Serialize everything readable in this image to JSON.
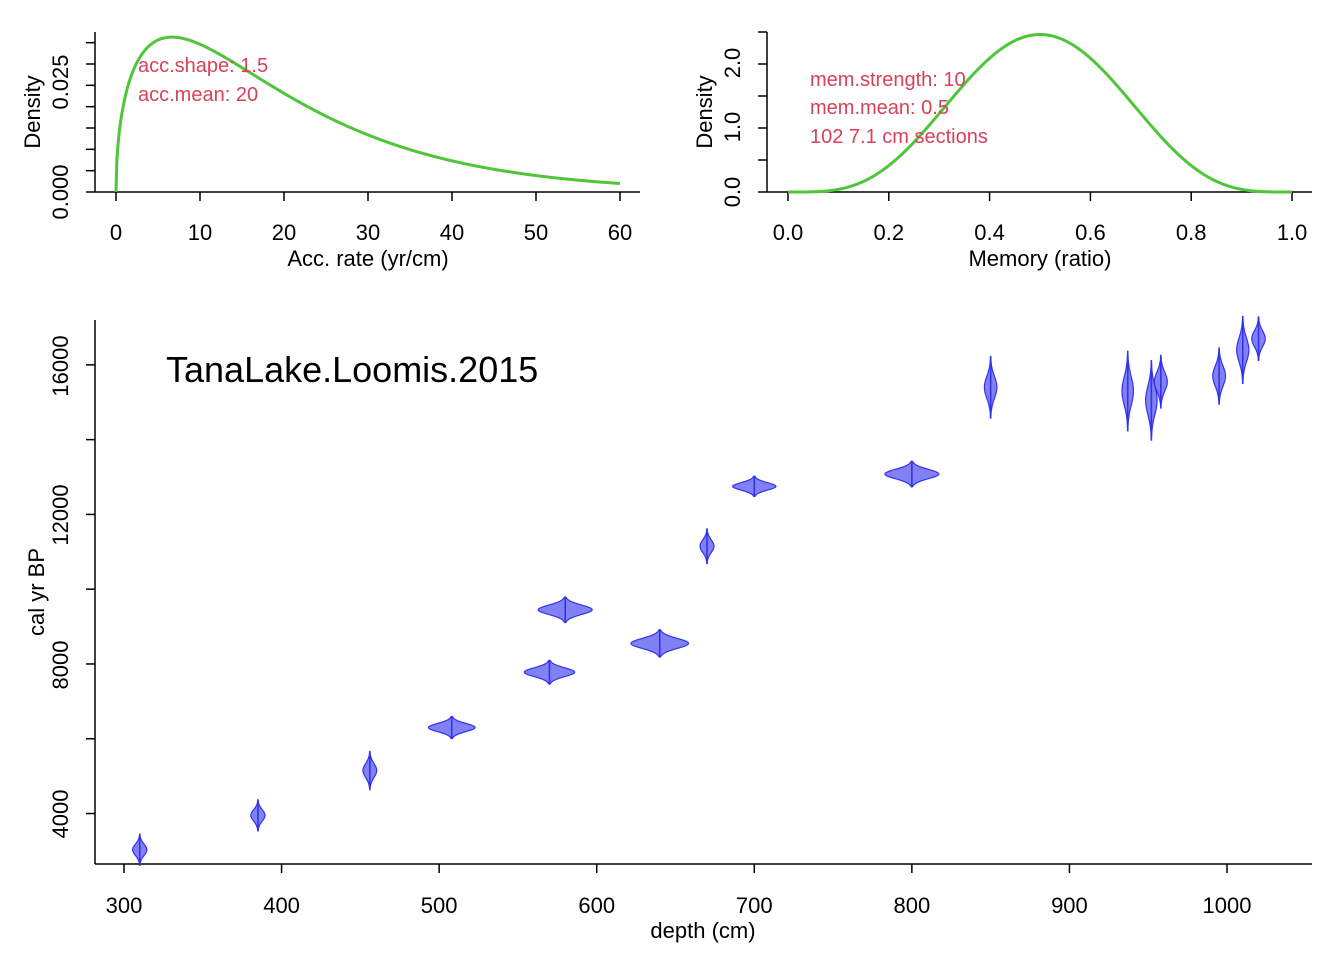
{
  "acc_panel": {
    "xlabel": "Acc. rate (yr/cm)",
    "ylabel": "Density",
    "xticks": [
      "0",
      "10",
      "20",
      "30",
      "40",
      "50",
      "60"
    ],
    "yticks": [
      "0.000",
      "0.025"
    ],
    "annotations": [
      "acc.shape:  1.5",
      "acc.mean:  20"
    ]
  },
  "mem_panel": {
    "xlabel": "Memory (ratio)",
    "ylabel": "Density",
    "xticks": [
      "0.0",
      "0.2",
      "0.4",
      "0.6",
      "0.8",
      "1.0"
    ],
    "yticks": [
      "0.0",
      "1.0",
      "2.0"
    ],
    "annotations": [
      "mem.strength: 10",
      "mem.mean: 0.5",
      "102 7.1 cm sections"
    ]
  },
  "age_panel": {
    "title": "TanaLake.Loomis.2015",
    "xlabel": "depth (cm)",
    "ylabel": "cal yr  BP",
    "xticks": [
      "300",
      "400",
      "500",
      "600",
      "700",
      "800",
      "900",
      "1000"
    ],
    "yticks": [
      "4000",
      "8000",
      "12000",
      "16000"
    ]
  },
  "chart_data": [
    {
      "type": "line",
      "title": "",
      "xlabel": "Acc. rate (yr/cm)",
      "ylabel": "Density",
      "xlim": [
        0,
        60
      ],
      "ylim": [
        0,
        0.0375
      ],
      "distribution": "gamma",
      "params": {
        "shape": 1.5,
        "mean": 20
      },
      "series": [
        {
          "color": "#4fc53a"
        }
      ]
    },
    {
      "type": "line",
      "title": "",
      "xlabel": "Memory (ratio)",
      "ylabel": "Density",
      "xlim": [
        0,
        1
      ],
      "ylim": [
        0,
        2.5
      ],
      "distribution": "beta",
      "params": {
        "strength": 10,
        "mean": 0.5
      },
      "series": [
        {
          "color": "#4fc53a"
        }
      ]
    },
    {
      "type": "scatter",
      "title": "TanaLake.Loomis.2015",
      "xlabel": "depth (cm)",
      "ylabel": "cal yr  BP",
      "xlim": [
        300,
        1050
      ],
      "ylim": [
        3000,
        17000
      ],
      "marker": "calibrated-date-distribution",
      "color": "#3333ee",
      "points": [
        {
          "depth": 310,
          "age": 3030,
          "spread": 180
        },
        {
          "depth": 385,
          "age": 3950,
          "spread": 180
        },
        {
          "depth": 456,
          "age": 5150,
          "spread": 220
        },
        {
          "depth": 508,
          "age": 6300,
          "spread": 130
        },
        {
          "depth": 570,
          "age": 7780,
          "spread": 140
        },
        {
          "depth": 580,
          "age": 9450,
          "spread": 150
        },
        {
          "depth": 640,
          "age": 8550,
          "spread": 160
        },
        {
          "depth": 670,
          "age": 11150,
          "spread": 200
        },
        {
          "depth": 700,
          "age": 12750,
          "spread": 120
        },
        {
          "depth": 800,
          "age": 13080,
          "spread": 150
        },
        {
          "depth": 850,
          "age": 15400,
          "spread": 350
        },
        {
          "depth": 937,
          "age": 15300,
          "spread": 450
        },
        {
          "depth": 952,
          "age": 15050,
          "spread": 450
        },
        {
          "depth": 958,
          "age": 15550,
          "spread": 300
        },
        {
          "depth": 995,
          "age": 15700,
          "spread": 320
        },
        {
          "depth": 1010,
          "age": 16400,
          "spread": 380
        },
        {
          "depth": 1020,
          "age": 16700,
          "spread": 250
        }
      ]
    }
  ]
}
